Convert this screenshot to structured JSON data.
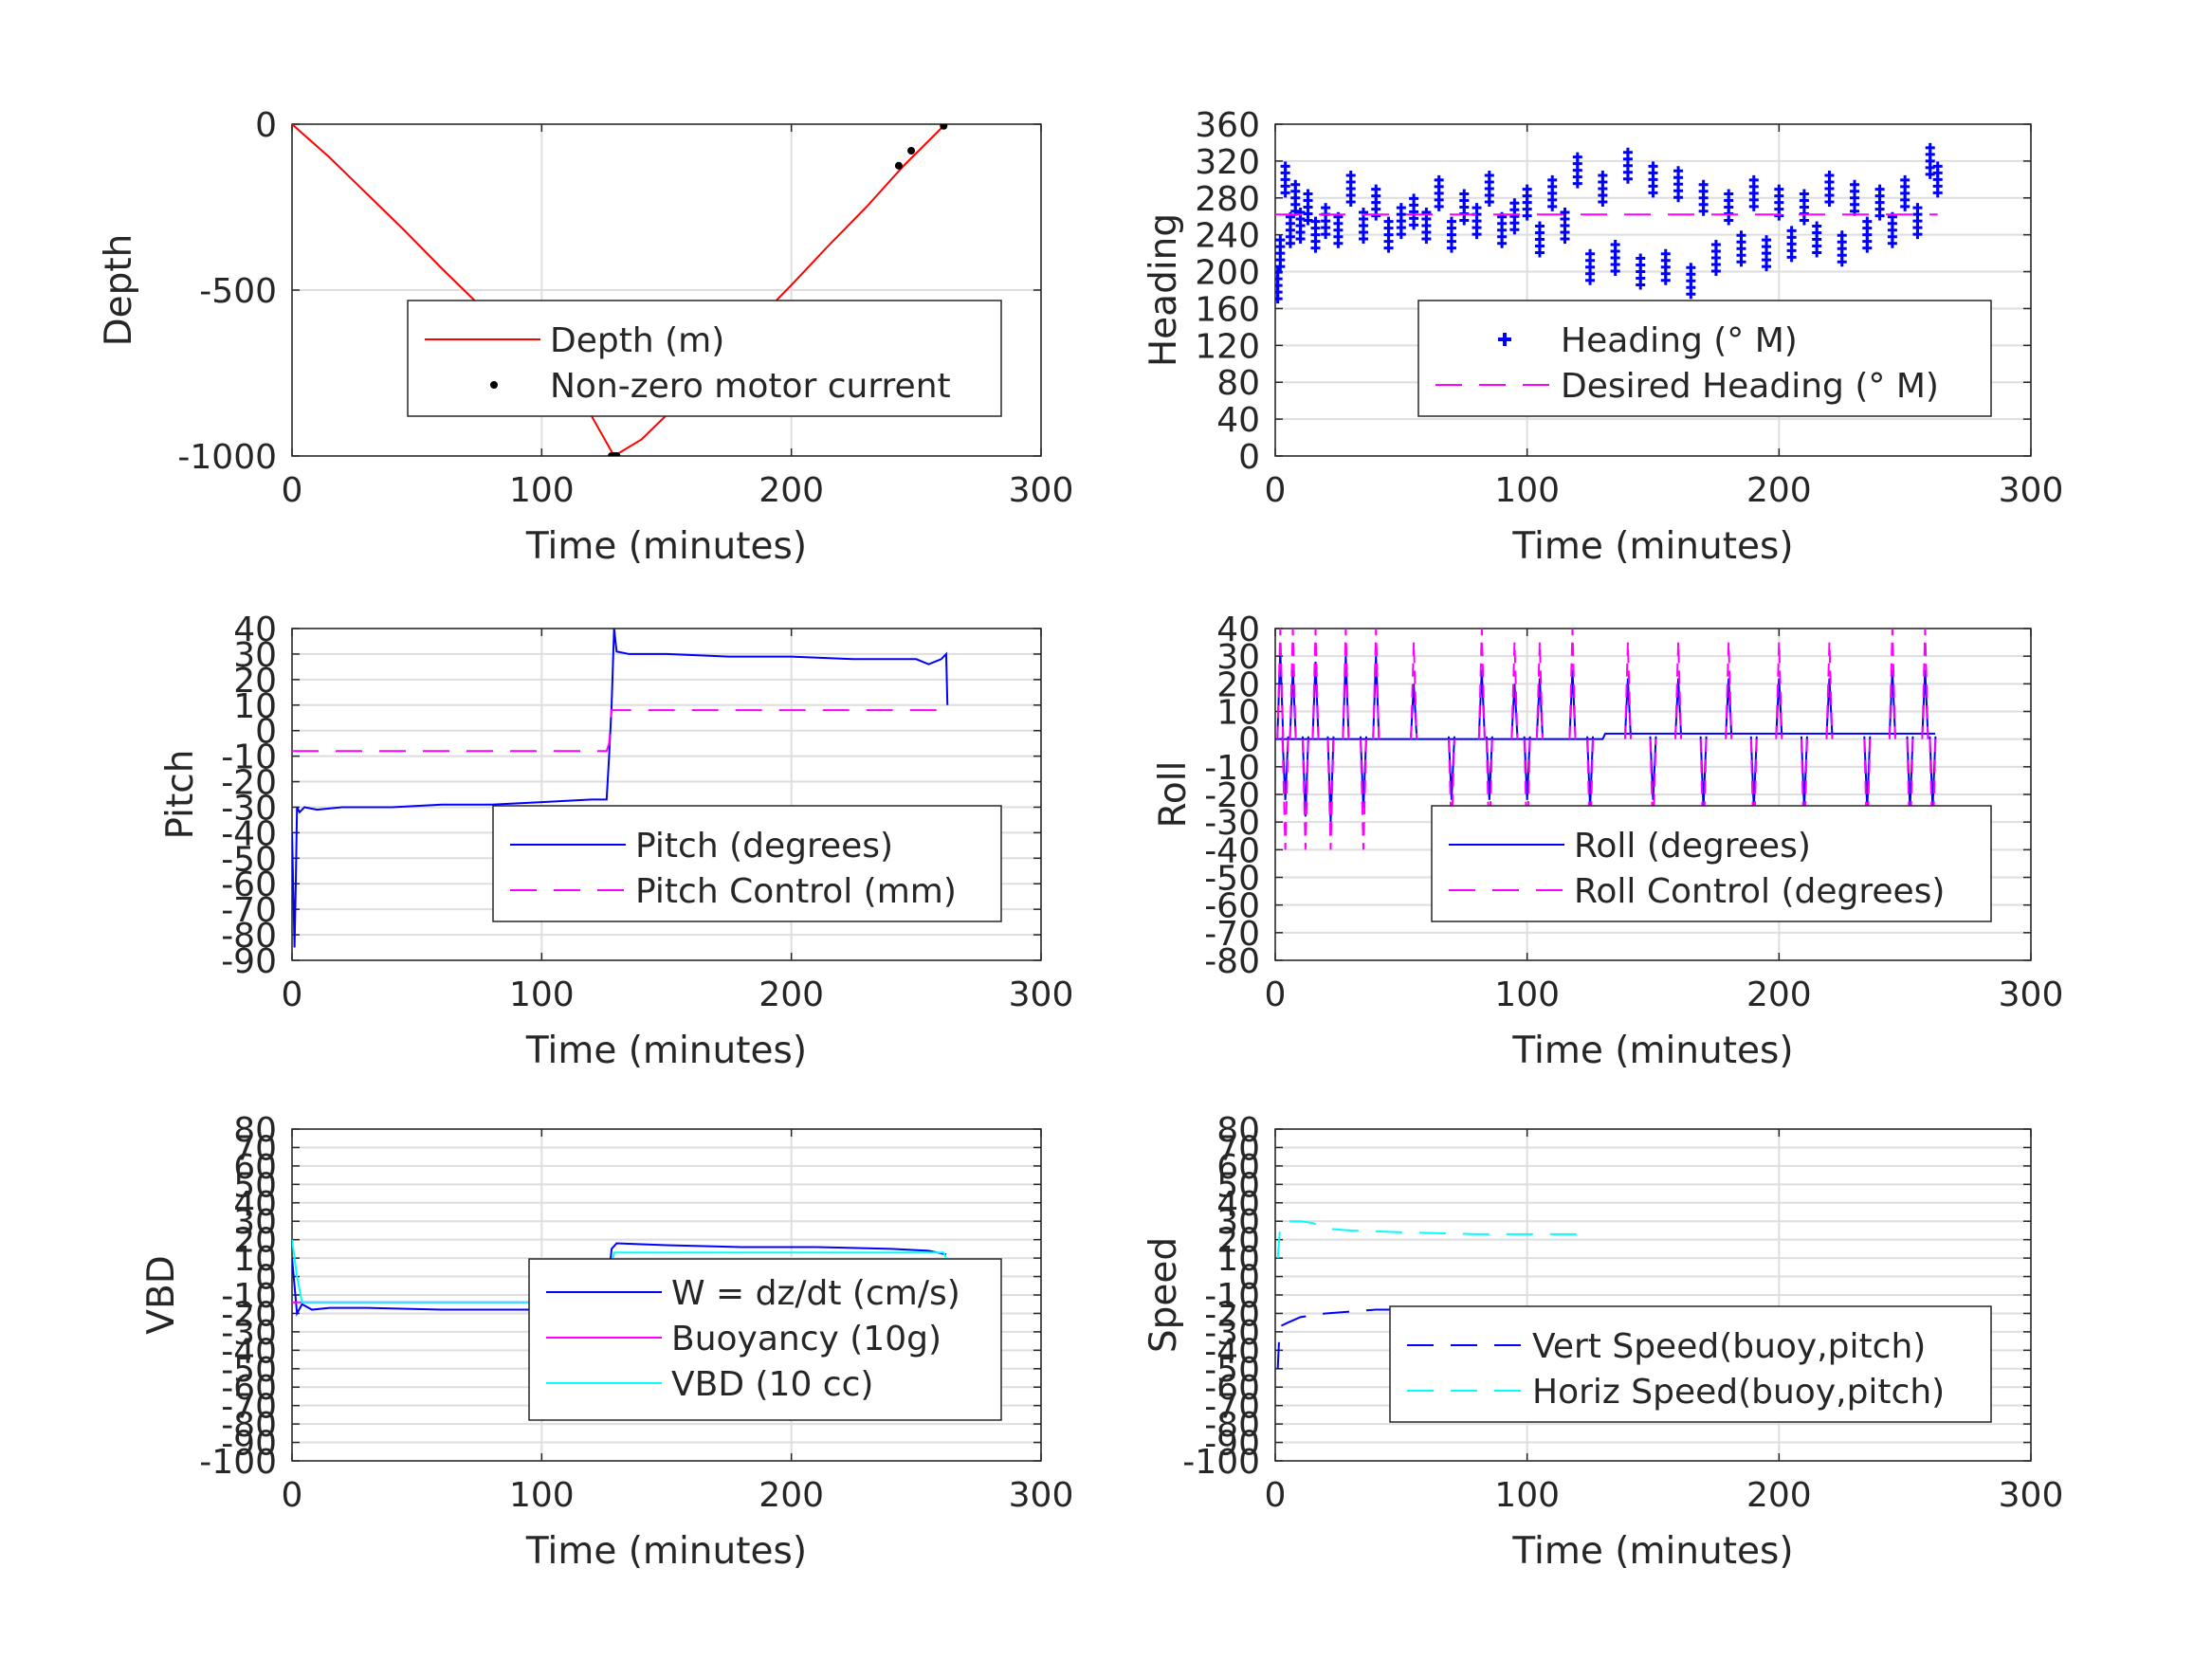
{
  "figure": {
    "background": "#ffffff",
    "grid_color": "#dedede",
    "axis_color": "#262626"
  },
  "chart_data": [
    {
      "id": "depth",
      "type": "line",
      "xlabel": "Time (minutes)",
      "ylabel": "Depth",
      "xlim": [
        0,
        300
      ],
      "ylim": [
        -1000,
        0
      ],
      "xticks": [
        0,
        100,
        200,
        300
      ],
      "yticks": [
        -1000,
        -500,
        0
      ],
      "ytick_labels": [
        "-1000",
        "-500",
        "0"
      ],
      "grid": true,
      "legend": "center-right",
      "series": [
        {
          "name": "Depth (m)",
          "style": "line",
          "color": "#ff0000",
          "x": [
            0,
            15,
            30,
            45,
            60,
            75,
            90,
            105,
            120,
            129,
            140,
            155,
            170,
            185,
            200,
            215,
            230,
            245,
            255,
            261
          ],
          "y": [
            0,
            -100,
            -210,
            -320,
            -435,
            -545,
            -655,
            -765,
            -880,
            -1000,
            -950,
            -840,
            -720,
            -600,
            -485,
            -365,
            -250,
            -125,
            -50,
            -5
          ]
        },
        {
          "name": "Non-zero motor current",
          "style": "dots",
          "color": "#000000",
          "x": [
            128,
            129,
            130,
            243,
            248,
            261
          ],
          "y": [
            -1000,
            -1000,
            -1000,
            -125,
            -80,
            -5
          ]
        }
      ]
    },
    {
      "id": "heading",
      "type": "scatter",
      "xlabel": "Time (minutes)",
      "ylabel": "Heading",
      "xlim": [
        0,
        300
      ],
      "ylim": [
        0,
        360
      ],
      "xticks": [
        0,
        100,
        200,
        300
      ],
      "yticks": [
        0,
        40,
        80,
        120,
        160,
        200,
        240,
        280,
        320,
        360
      ],
      "ytick_labels": [
        "0",
        "40",
        "80",
        "120",
        "160",
        "200",
        "240",
        "280",
        "320",
        "360"
      ],
      "grid": true,
      "legend": "bottom-right",
      "series": [
        {
          "name": "Heading (° M)",
          "style": "plus",
          "color": "#0000ff",
          "x": [
            1,
            2,
            4,
            6,
            8,
            10,
            13,
            16,
            20,
            25,
            30,
            35,
            40,
            45,
            50,
            55,
            60,
            65,
            70,
            75,
            80,
            85,
            90,
            95,
            100,
            105,
            110,
            115,
            120,
            125,
            130,
            135,
            140,
            145,
            150,
            155,
            160,
            165,
            170,
            175,
            180,
            185,
            190,
            195,
            200,
            205,
            210,
            215,
            220,
            225,
            230,
            235,
            240,
            245,
            250,
            255,
            260,
            263
          ],
          "y": [
            185,
            220,
            300,
            245,
            280,
            250,
            270,
            240,
            255,
            245,
            290,
            250,
            275,
            240,
            255,
            265,
            250,
            285,
            240,
            270,
            255,
            290,
            245,
            260,
            275,
            235,
            285,
            250,
            310,
            205,
            290,
            215,
            315,
            200,
            300,
            205,
            295,
            190,
            280,
            215,
            270,
            225,
            285,
            220,
            275,
            230,
            270,
            235,
            290,
            225,
            280,
            240,
            275,
            245,
            285,
            255,
            320,
            300
          ]
        },
        {
          "name": "Desired Heading (° M)",
          "style": "dashed",
          "color": "#ff00ff",
          "x": [
            0,
            263
          ],
          "y": [
            262,
            262
          ]
        }
      ]
    },
    {
      "id": "pitch",
      "type": "line",
      "xlabel": "Time (minutes)",
      "ylabel": "Pitch",
      "xlim": [
        0,
        300
      ],
      "ylim": [
        -90,
        40
      ],
      "xticks": [
        0,
        100,
        200,
        300
      ],
      "yticks": [
        -90,
        -80,
        -70,
        -60,
        -50,
        -40,
        -30,
        -20,
        -10,
        0,
        10,
        20,
        30,
        40
      ],
      "ytick_labels": [
        "-90",
        "-80",
        "-70",
        "-60",
        "-50",
        "-40",
        "-30",
        "-20",
        "-10",
        "0",
        "10",
        "20",
        "30",
        "40"
      ],
      "grid": true,
      "legend": "bottom-right",
      "series": [
        {
          "name": "Pitch (degrees)",
          "style": "line",
          "color": "#0000ff",
          "x": [
            0,
            1,
            1.5,
            2,
            3,
            5,
            10,
            20,
            40,
            60,
            80,
            100,
            120,
            126,
            127,
            128,
            129,
            130,
            135,
            150,
            175,
            200,
            225,
            250,
            255,
            260,
            262,
            262.5
          ],
          "y": [
            -40,
            -85,
            -60,
            -30,
            -32,
            -30,
            -31,
            -30,
            -30,
            -29,
            -29,
            -28,
            -27,
            -27,
            -10,
            10,
            40,
            31,
            30,
            30,
            29,
            29,
            28,
            28,
            26,
            28,
            30,
            10
          ]
        },
        {
          "name": "Pitch Control (mm)",
          "style": "dashed",
          "color": "#ff00ff",
          "x": [
            0,
            126,
            127,
            128,
            262
          ],
          "y": [
            -8,
            -8,
            -5,
            8,
            8
          ]
        }
      ]
    },
    {
      "id": "roll",
      "type": "line",
      "xlabel": "Time (minutes)",
      "ylabel": "Roll",
      "xlim": [
        0,
        300
      ],
      "ylim": [
        -80,
        40
      ],
      "xticks": [
        0,
        100,
        200,
        300
      ],
      "yticks": [
        -80,
        -70,
        -60,
        -50,
        -40,
        -30,
        -20,
        -10,
        0,
        10,
        20,
        30,
        40
      ],
      "ytick_labels": [
        "-80",
        "-70",
        "-60",
        "-50",
        "-40",
        "-30",
        "-20",
        "-10",
        "0",
        "10",
        "20",
        "30",
        "40"
      ],
      "grid": true,
      "legend": "bottom-right",
      "series": [
        {
          "name": "Roll (degrees)",
          "style": "line",
          "color": "#0000ff",
          "baseline": [
            [
              0,
              0
            ],
            [
              130,
              0
            ],
            [
              131,
              2
            ],
            [
              262,
              2
            ]
          ],
          "spikes": [
            [
              2,
              32
            ],
            [
              4,
              -22
            ],
            [
              7,
              25
            ],
            [
              12,
              -28
            ],
            [
              16,
              28
            ],
            [
              22,
              -30
            ],
            [
              28,
              30
            ],
            [
              35,
              -25
            ],
            [
              40,
              30
            ],
            [
              55,
              20
            ],
            [
              70,
              -22
            ],
            [
              82,
              25
            ],
            [
              85,
              -22
            ],
            [
              95,
              20
            ],
            [
              100,
              -22
            ],
            [
              105,
              22
            ],
            [
              118,
              25
            ],
            [
              125,
              -25
            ],
            [
              140,
              22
            ],
            [
              150,
              -22
            ],
            [
              160,
              22
            ],
            [
              170,
              -25
            ],
            [
              180,
              22
            ],
            [
              190,
              -25
            ],
            [
              200,
              22
            ],
            [
              210,
              -25
            ],
            [
              220,
              22
            ],
            [
              235,
              -25
            ],
            [
              245,
              25
            ],
            [
              252,
              -25
            ],
            [
              258,
              25
            ],
            [
              261,
              -25
            ]
          ]
        },
        {
          "name": "Roll Control (degrees)",
          "style": "dashed",
          "color": "#ff00ff",
          "spikes": [
            [
              2,
              40
            ],
            [
              4,
              -40
            ],
            [
              7,
              40
            ],
            [
              12,
              -40
            ],
            [
              16,
              40
            ],
            [
              22,
              -40
            ],
            [
              28,
              40
            ],
            [
              35,
              -40
            ],
            [
              40,
              40
            ],
            [
              55,
              35
            ],
            [
              70,
              -35
            ],
            [
              82,
              40
            ],
            [
              85,
              -40
            ],
            [
              95,
              35
            ],
            [
              100,
              -40
            ],
            [
              105,
              35
            ],
            [
              118,
              40
            ],
            [
              125,
              -40
            ],
            [
              140,
              35
            ],
            [
              150,
              -35
            ],
            [
              160,
              35
            ],
            [
              170,
              -40
            ],
            [
              180,
              35
            ],
            [
              190,
              -40
            ],
            [
              200,
              35
            ],
            [
              210,
              -40
            ],
            [
              220,
              35
            ],
            [
              235,
              -40
            ],
            [
              245,
              40
            ],
            [
              252,
              -40
            ],
            [
              258,
              40
            ],
            [
              261,
              -40
            ]
          ]
        }
      ]
    },
    {
      "id": "vbd",
      "type": "line",
      "xlabel": "Time (minutes)",
      "ylabel": "VBD",
      "xlim": [
        0,
        300
      ],
      "ylim": [
        -100,
        80
      ],
      "xticks": [
        0,
        100,
        200,
        300
      ],
      "yticks": [
        -100,
        -90,
        -80,
        -70,
        -60,
        -50,
        -40,
        -30,
        -20,
        -10,
        0,
        10,
        20,
        30,
        40,
        50,
        60,
        70,
        80
      ],
      "ytick_labels": [
        "-100",
        "-90",
        "-80",
        "-70",
        "-60",
        "-50",
        "-40",
        "-30",
        "-20",
        "-10",
        "0",
        "10",
        "20",
        "30",
        "40",
        "50",
        "60",
        "70",
        "80"
      ],
      "grid": true,
      "legend": "bottom-right",
      "series": [
        {
          "name": "W = dz/dt (cm/s)",
          "style": "line",
          "color": "#0000ff",
          "x": [
            0,
            1,
            2,
            4,
            8,
            15,
            30,
            60,
            90,
            120,
            126,
            128,
            130,
            150,
            180,
            210,
            240,
            255,
            262
          ],
          "y": [
            10,
            -5,
            -20,
            -15,
            -18,
            -17,
            -17,
            -18,
            -18,
            -18,
            -12,
            15,
            18,
            17,
            16,
            16,
            15,
            14,
            12
          ]
        },
        {
          "name": "Buoyancy (10g)",
          "style": "line",
          "color": "#ff00ff",
          "x": [
            0,
            262
          ],
          "y": [
            -14,
            -14
          ]
        },
        {
          "name": "VBD (10 cc)",
          "style": "line",
          "color": "#00ffff",
          "x": [
            0,
            2,
            4,
            126,
            127,
            128,
            129,
            261,
            262
          ],
          "y": [
            20,
            0,
            -14,
            -14,
            -5,
            5,
            13,
            13,
            10
          ]
        }
      ]
    },
    {
      "id": "speed",
      "type": "line",
      "xlabel": "Time (minutes)",
      "ylabel": "Speed",
      "xlim": [
        0,
        300
      ],
      "ylim": [
        -100,
        80
      ],
      "xticks": [
        0,
        100,
        200,
        300
      ],
      "yticks": [
        -100,
        -90,
        -80,
        -70,
        -60,
        -50,
        -40,
        -30,
        -20,
        -10,
        0,
        10,
        20,
        30,
        40,
        50,
        60,
        70,
        80
      ],
      "ytick_labels": [
        "-100",
        "-90",
        "-80",
        "-70",
        "-60",
        "-50",
        "-40",
        "-30",
        "-20",
        "-10",
        "0",
        "10",
        "20",
        "30",
        "40",
        "50",
        "60",
        "70",
        "80"
      ],
      "grid": true,
      "legend": "bottom-right",
      "series": [
        {
          "name": "Vert Speed(buoy,pitch)",
          "style": "dashed",
          "color": "#0000ff",
          "x": [
            1,
            1.5,
            2,
            5,
            10,
            20,
            40,
            60,
            80,
            100,
            124
          ],
          "y": [
            -50,
            -35,
            -27,
            -25,
            -22,
            -20,
            -18,
            -18,
            -17,
            -17,
            -17
          ]
        },
        {
          "name": "Horiz Speed(buoy,pitch)",
          "style": "dashed",
          "color": "#00ffff",
          "x": [
            1,
            2,
            5,
            10,
            15,
            20,
            30,
            50,
            80,
            100,
            124
          ],
          "y": [
            10,
            28,
            30,
            30,
            29,
            26,
            25,
            24,
            23,
            23,
            23
          ]
        }
      ]
    }
  ]
}
